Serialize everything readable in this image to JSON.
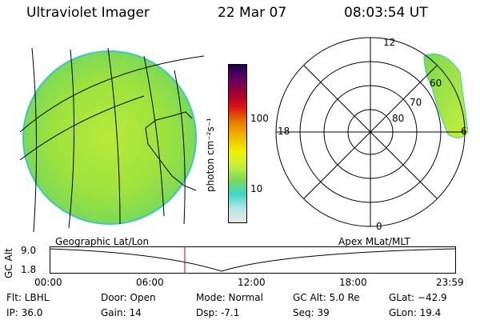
{
  "header": {
    "title": "Ultraviolet Imager",
    "date": "22 Mar 07",
    "time": "08:03:54 UT"
  },
  "colorbar": {
    "label": "photon cm⁻²s⁻¹",
    "ticks": [
      "100",
      "10"
    ],
    "scale": "log",
    "colors": [
      "#e6e6e6",
      "#b4e6e6",
      "#3ad7c8",
      "#7ed957",
      "#c8f03c",
      "#f0f000",
      "#f0b400",
      "#e67800",
      "#dc1414",
      "#a00032",
      "#640064",
      "#1e0046"
    ]
  },
  "geo_panel": {
    "label": "Geographic Lat/Lon"
  },
  "polar_panel": {
    "label": "Apex MLat/MLT",
    "mlt_labels": [
      "12",
      "18",
      "6",
      "0"
    ],
    "lat_labels": [
      "60",
      "70",
      "80"
    ]
  },
  "timeline": {
    "ylabel": "GC Alt",
    "y_ticks": [
      "9.0",
      "1.8"
    ],
    "x_ticks": [
      "00:00",
      "06:00",
      "12:00",
      "18:00",
      "23:59"
    ],
    "marker_color": "#cc0000"
  },
  "info": {
    "filter": "Flt: LBHL",
    "ip": "IP: 36.0",
    "door": "Door: Open",
    "gain": "Gain: 14",
    "mode": "Mode: Normal",
    "dsp": "Dsp:    -7.1",
    "gc_alt": "GC Alt: 5.0 Re",
    "seq": "Seq: 39",
    "glat": "GLat: −42.9",
    "glon": "GLon:  19.4"
  }
}
